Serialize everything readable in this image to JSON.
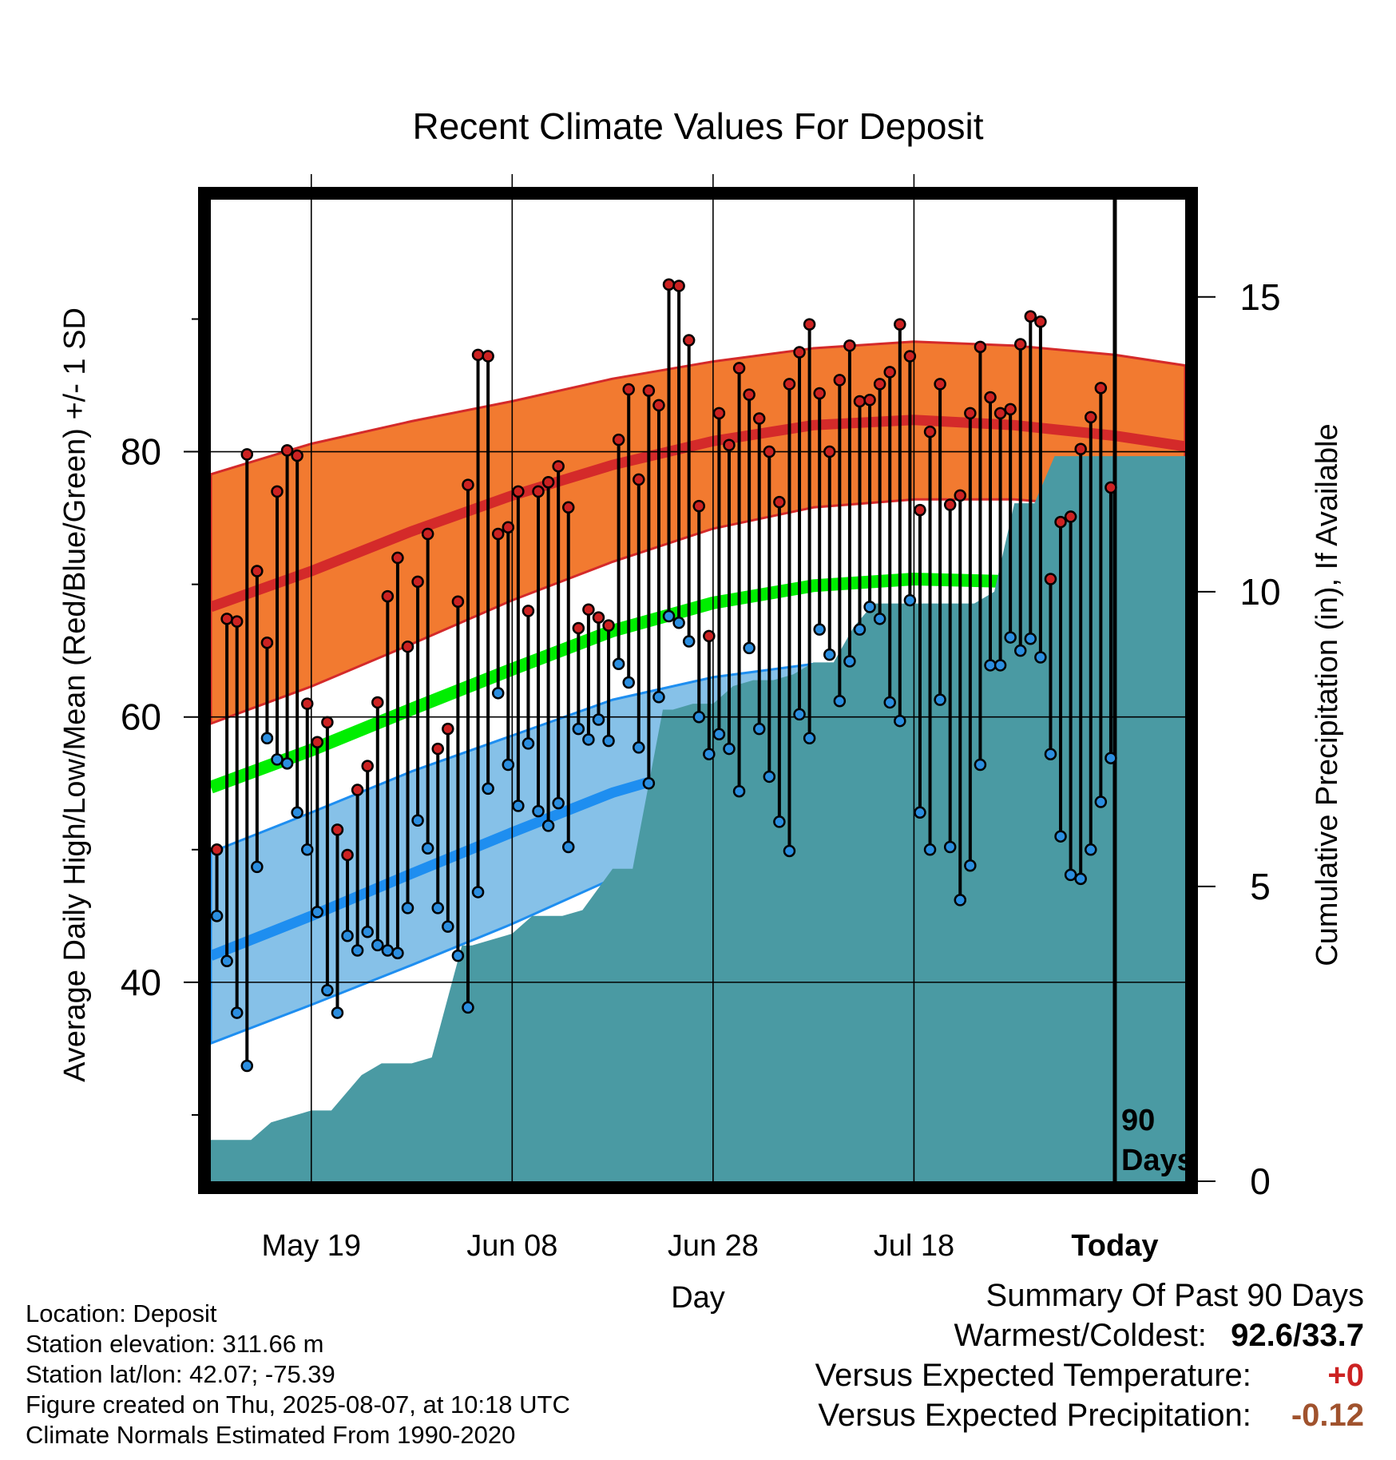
{
  "chart_data": {
    "type": "line",
    "title": "Recent Climate Values For Deposit",
    "xlabel": "Day",
    "ylabel": "Average Daily High/Low/Mean (Red/Blue/Green) +/- 1 SD",
    "y2label": "Cumulative Precipitation (in), If Available",
    "ylim": [
      25,
      99
    ],
    "y_ticks": [
      40,
      60,
      80
    ],
    "y2lim": [
      0,
      15
    ],
    "y2_ticks": [
      0,
      5,
      10,
      15
    ],
    "x_range_days_from_today": [
      -90,
      7
    ],
    "x_ticks": [
      {
        "label": "May 19",
        "day": -80
      },
      {
        "label": "Jun 08",
        "day": -60
      },
      {
        "label": "Jun 28",
        "day": -40
      },
      {
        "label": "Jul 18",
        "day": -20
      },
      {
        "label": "Today",
        "day": 0
      }
    ],
    "today_marker_label": [
      "90",
      "Days"
    ],
    "normals": {
      "day": [
        -90,
        -80,
        -70,
        -60,
        -50,
        -40,
        -30,
        -20,
        -10,
        0,
        7
      ],
      "high_mean": [
        68.3,
        71.0,
        74.0,
        76.7,
        79.0,
        80.8,
        82.0,
        82.4,
        82.0,
        81.2,
        80.4
      ],
      "high_upper": [
        78.3,
        80.6,
        82.3,
        83.8,
        85.5,
        86.8,
        87.8,
        88.3,
        88.0,
        87.3,
        86.5
      ],
      "high_lower": [
        59.5,
        62.3,
        65.5,
        68.8,
        71.7,
        74.2,
        75.8,
        76.4,
        76.4,
        75.8,
        75.3
      ],
      "avg_mean": [
        54.7,
        57.5,
        60.6,
        63.6,
        66.5,
        68.6,
        69.9,
        70.4,
        70.2,
        69.3,
        68.5
      ],
      "low_mean": [
        42.0,
        45.0,
        48.2,
        51.3,
        54.3,
        56.5,
        57.6,
        58.0,
        57.7,
        57.0,
        56.3
      ],
      "low_upper": [
        49.8,
        52.8,
        55.9,
        58.6,
        61.3,
        63.0,
        64.0,
        64.1,
        63.8,
        63.2,
        62.7
      ],
      "low_lower": [
        35.4,
        38.3,
        41.3,
        44.4,
        47.8,
        50.4,
        52.0,
        52.6,
        52.5,
        51.7,
        51.1
      ]
    },
    "series": [
      {
        "name": "High",
        "color": "#cc2222",
        "values": [
          50.0,
          67.4,
          67.2,
          79.8,
          71.0,
          65.6,
          77.0,
          80.1,
          79.7,
          61.0,
          58.1,
          59.6,
          51.5,
          49.6,
          54.5,
          56.3,
          61.1,
          69.1,
          72.0,
          65.3,
          70.2,
          73.8,
          57.6,
          59.1,
          68.7,
          77.5,
          87.3,
          87.2,
          73.8,
          74.3,
          77.0,
          68.0,
          77.0,
          77.7,
          78.9,
          75.8,
          66.7,
          68.1,
          67.5,
          66.9,
          80.9,
          84.7,
          77.9,
          84.6,
          83.5,
          92.6,
          92.5,
          88.4,
          75.9,
          66.1,
          82.9,
          80.5,
          86.3,
          84.3,
          82.5,
          80.0,
          76.2,
          85.1,
          87.5,
          89.6,
          84.4,
          80.0,
          85.4,
          88.0,
          83.8,
          83.9,
          85.1,
          86.0,
          89.6,
          87.2,
          75.6,
          81.5,
          85.1,
          76.0,
          76.7,
          82.9,
          87.9,
          84.1,
          82.9,
          83.2,
          88.1,
          90.2,
          89.8,
          70.4,
          74.7,
          75.1,
          80.2,
          82.6,
          84.8,
          77.3
        ]
      },
      {
        "name": "Low",
        "color": "#2b8ee0",
        "values": [
          45.0,
          41.6,
          37.7,
          33.7,
          48.7,
          58.4,
          56.8,
          56.5,
          52.8,
          50.0,
          45.3,
          39.4,
          37.7,
          43.5,
          42.4,
          43.8,
          42.8,
          42.4,
          42.2,
          45.6,
          52.2,
          50.1,
          45.6,
          44.2,
          42.0,
          38.1,
          46.8,
          54.6,
          61.8,
          56.4,
          53.3,
          58.0,
          52.9,
          51.8,
          53.5,
          50.2,
          59.1,
          58.3,
          59.8,
          58.2,
          64.0,
          62.6,
          57.7,
          55.0,
          61.5,
          67.6,
          67.1,
          65.7,
          60.0,
          57.2,
          58.7,
          57.6,
          54.4,
          65.2,
          59.1,
          55.5,
          52.1,
          49.9,
          60.2,
          58.4,
          66.6,
          64.7,
          61.2,
          64.2,
          66.6,
          68.3,
          67.4,
          61.1,
          59.7,
          68.8,
          52.8,
          50.0,
          61.3,
          50.2,
          46.2,
          48.8,
          56.4,
          63.9,
          63.9,
          66.0,
          65.0,
          65.9,
          64.5,
          57.2,
          51.0,
          48.1,
          47.8,
          50.0,
          53.6,
          56.9
        ]
      }
    ],
    "precip": {
      "color": "#4a9aa3",
      "day": [
        -90,
        -86,
        -84,
        -80,
        -78,
        -75,
        -73,
        -70,
        -68,
        -65,
        -64,
        -62,
        -60,
        -58,
        -55,
        -53,
        -50,
        -48,
        -45,
        -44,
        -42,
        -40,
        -38,
        -36,
        -34,
        -32,
        -30,
        -28,
        -26,
        -24,
        -22,
        -20,
        -18,
        -16,
        -14,
        -12,
        -10,
        -8,
        -6,
        -4,
        -2,
        0,
        7
      ],
      "value": [
        0.7,
        0.7,
        1.0,
        1.2,
        1.2,
        1.8,
        2.0,
        2.0,
        2.1,
        4.0,
        4.0,
        4.1,
        4.2,
        4.5,
        4.5,
        4.6,
        5.3,
        5.3,
        8.0,
        8.0,
        8.1,
        8.1,
        8.4,
        8.5,
        8.5,
        8.6,
        8.8,
        8.8,
        9.4,
        9.8,
        9.8,
        9.8,
        9.8,
        9.8,
        9.8,
        10.0,
        11.5,
        11.5,
        12.3,
        12.3,
        12.3,
        12.3,
        12.3
      ]
    }
  },
  "info": {
    "location": "Location: Deposit",
    "elevation": "Station elevation: 311.66 m",
    "latlon": "Station lat/lon: 42.07; -75.39",
    "created": "Figure created on Thu, 2025-08-07, at 10:18 UTC",
    "normals": "Climate Normals Estimated From 1990-2020"
  },
  "summary": {
    "heading": "Summary Of Past 90 Days",
    "warm_cold_label": "Warmest/Coldest:",
    "warm_cold_value": "92.6/33.7",
    "temp_label": "Versus Expected Temperature:",
    "temp_value": "+0",
    "temp_color": "#cc2222",
    "precip_label": "Versus Expected Precipitation:",
    "precip_value": "-0.12",
    "precip_color": "#a0522d"
  },
  "colors": {
    "high_band": "#f27a30",
    "high_line": "#d42a2a",
    "low_band": "#86c1e8",
    "low_line": "#1e8ef0",
    "mean_line": "#00ee00"
  }
}
